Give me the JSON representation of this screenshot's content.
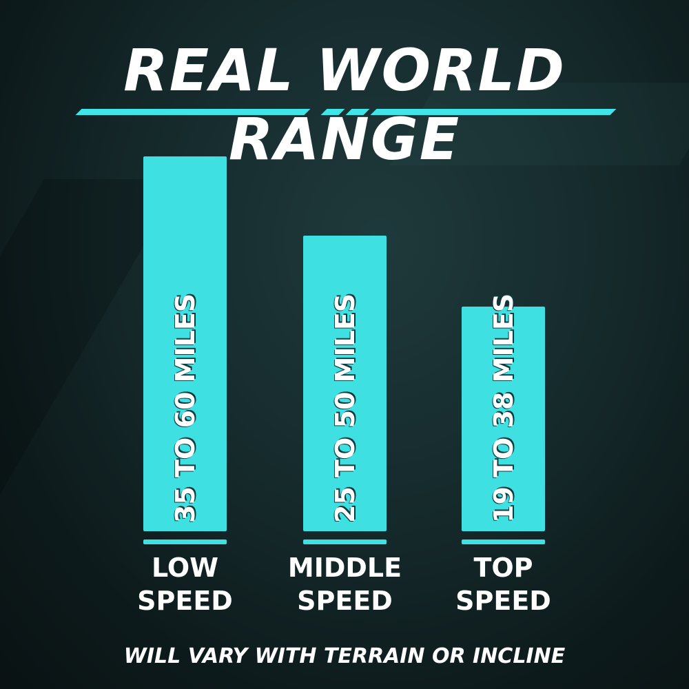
{
  "chart_data": {
    "type": "bar",
    "title": "REAL WORLD RANGE",
    "categories": [
      [
        "LOW",
        "SPEED"
      ],
      [
        "MIDDLE",
        "SPEED"
      ],
      [
        "TOP",
        "SPEED"
      ]
    ],
    "series": [
      {
        "values": [
          [
            35,
            60
          ],
          [
            25,
            50
          ],
          [
            19,
            38
          ]
        ]
      }
    ],
    "data_labels": [
      "35 TO 60 MILES",
      "25 TO 50 MILES",
      "19 TO 38 MILES"
    ],
    "unit": "miles",
    "grid": false,
    "bar_color": "#3ee0e2",
    "footnote": "WILL VARY WITH TERRAIN OR INCLINE"
  }
}
